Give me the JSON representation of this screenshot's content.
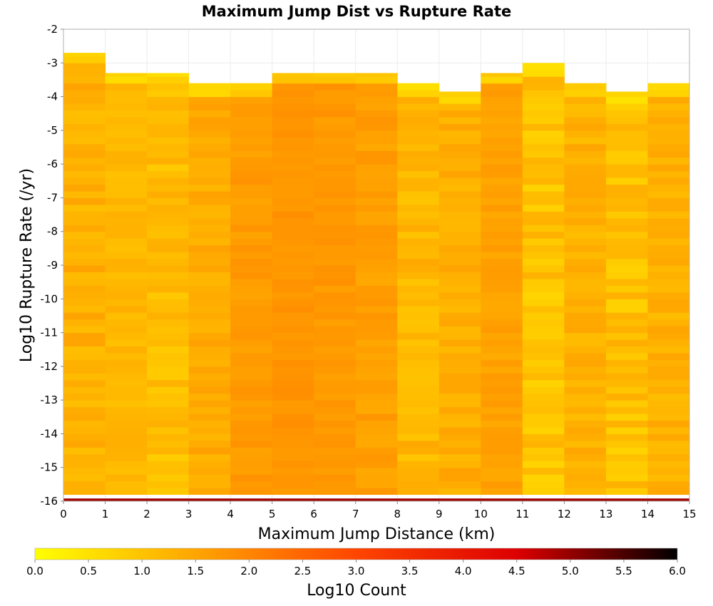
{
  "chart_data": {
    "type": "heatmap",
    "title": "Maximum Jump Dist vs Rupture Rate",
    "xlabel": "Maximum Jump Distance (km)",
    "ylabel": "Log10 Rupture Rate (/yr)",
    "xlim": [
      0,
      15
    ],
    "ylim": [
      -16,
      -2
    ],
    "x_bin_width": 1,
    "y_bin_width": 0.2,
    "x_ticks": [
      "0",
      "1",
      "2",
      "3",
      "4",
      "5",
      "6",
      "7",
      "8",
      "9",
      "10",
      "11",
      "12",
      "13",
      "14",
      "15"
    ],
    "y_ticks": [
      "-2",
      "-3",
      "-4",
      "-5",
      "-6",
      "-7",
      "-8",
      "-9",
      "-10",
      "-11",
      "-12",
      "-13",
      "-14",
      "-15",
      "-16"
    ],
    "colorbar": {
      "label": "Log10 Count",
      "range": [
        0.0,
        6.0
      ],
      "ticks": [
        "0.0",
        "0.5",
        "1.0",
        "1.5",
        "2.0",
        "2.5",
        "3.0",
        "3.5",
        "4.0",
        "4.5",
        "5.0",
        "5.5",
        "6.0"
      ],
      "colors": [
        "#ffff00",
        "#ffa500",
        "#ff4500",
        "#dd0000",
        "#000000"
      ]
    },
    "columns": [
      {
        "x": 0,
        "y_max": -2.7,
        "base": 1.3,
        "amp": 0.25
      },
      {
        "x": 1,
        "y_max": -3.3,
        "base": 1.2,
        "amp": 0.15
      },
      {
        "x": 2,
        "y_max": -3.3,
        "base": 1.1,
        "amp": 0.25
      },
      {
        "x": 3,
        "y_max": -3.6,
        "base": 1.4,
        "amp": 0.2
      },
      {
        "x": 4,
        "y_max": -3.6,
        "base": 1.65,
        "amp": 0.15
      },
      {
        "x": 5,
        "y_max": -3.3,
        "base": 1.75,
        "amp": 0.1
      },
      {
        "x": 6,
        "y_max": -3.3,
        "base": 1.7,
        "amp": 0.12
      },
      {
        "x": 7,
        "y_max": -3.3,
        "base": 1.6,
        "amp": 0.15
      },
      {
        "x": 8,
        "y_max": -3.6,
        "base": 1.2,
        "amp": 0.25
      },
      {
        "x": 9,
        "y_max": -3.85,
        "base": 1.35,
        "amp": 0.2
      },
      {
        "x": 10,
        "y_max": -3.3,
        "base": 1.55,
        "amp": 0.15
      },
      {
        "x": 11,
        "y_max": -3.0,
        "base": 1.0,
        "amp": 0.3
      },
      {
        "x": 12,
        "y_max": -3.6,
        "base": 1.3,
        "amp": 0.2
      },
      {
        "x": 13,
        "y_max": -3.85,
        "base": 1.05,
        "amp": 0.3
      },
      {
        "x": 14,
        "y_max": -3.6,
        "base": 1.3,
        "amp": 0.2
      }
    ],
    "bottom_row": {
      "y": -16,
      "value": 4.9
    }
  }
}
